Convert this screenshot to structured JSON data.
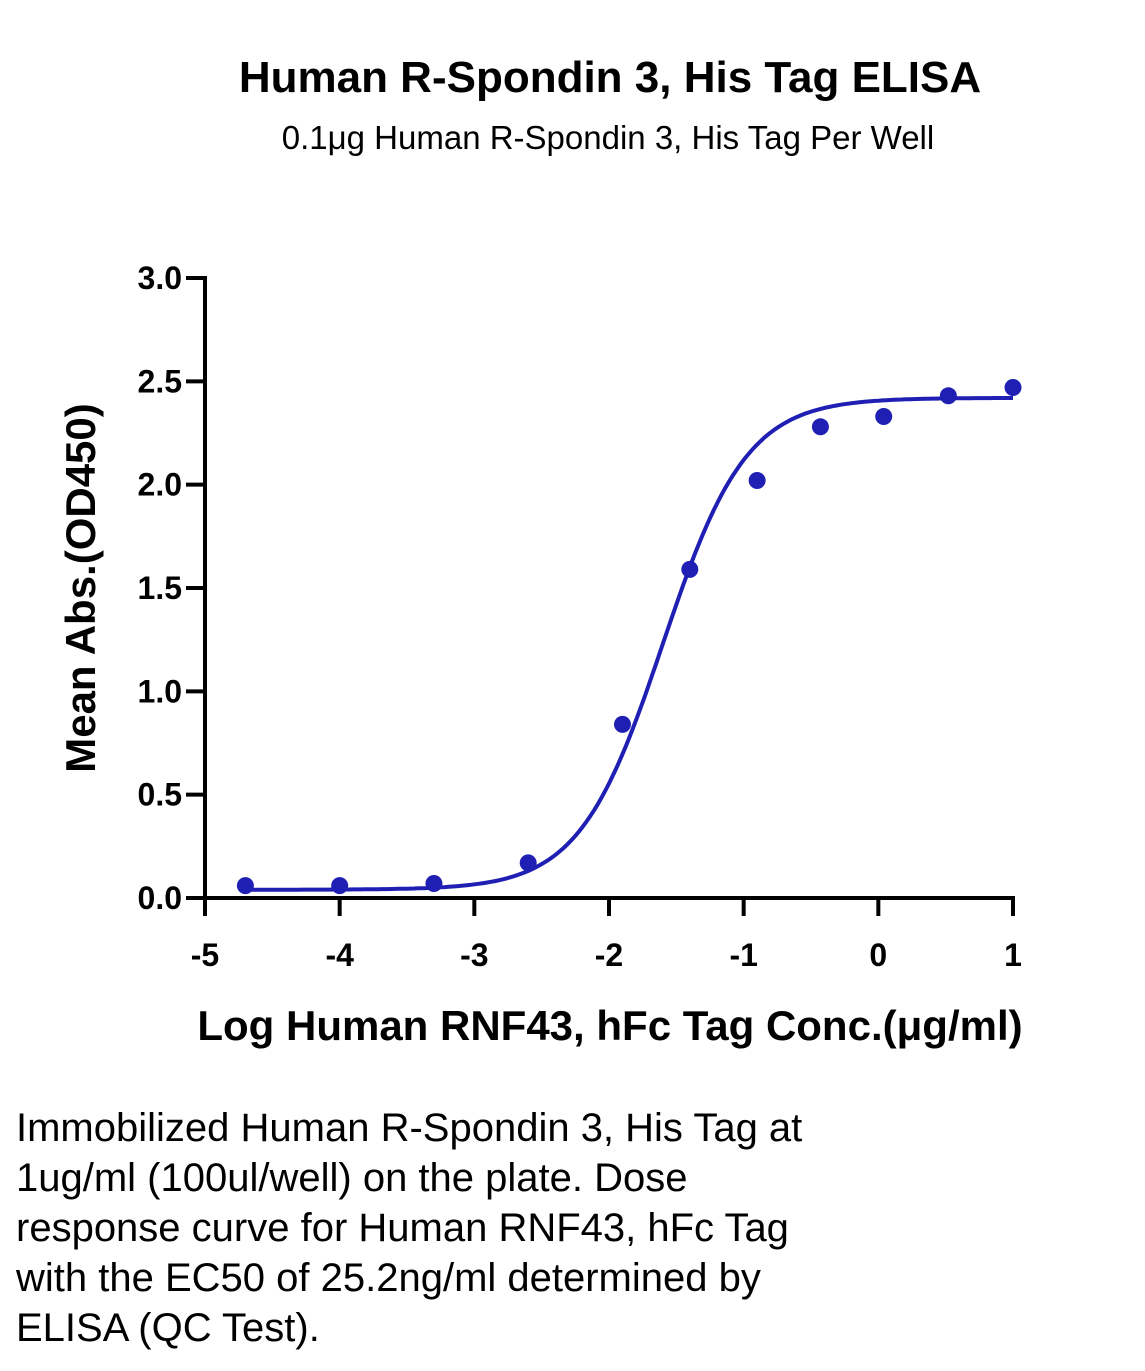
{
  "chart_data": {
    "type": "scatter",
    "title": "Human R-Spondin 3, His Tag ELISA",
    "subtitle": "0.1μg Human R-Spondin 3, His Tag Per Well",
    "xlabel": "Log Human RNF43, hFc Tag Conc.(μg/ml)",
    "ylabel": "Mean Abs.(OD450)",
    "xlim": [
      -5,
      1
    ],
    "ylim": [
      0,
      3.0
    ],
    "x_ticks": [
      -5,
      -4,
      -3,
      -2,
      -1,
      0,
      1
    ],
    "x_tick_labels": [
      "-5",
      "-4",
      "-3",
      "-2",
      "-1",
      "0",
      "1"
    ],
    "y_ticks": [
      0,
      0.5,
      1.0,
      1.5,
      2.0,
      2.5,
      3.0
    ],
    "y_tick_labels": [
      "0.0",
      "0.5",
      "1.0",
      "1.5",
      "2.0",
      "2.5",
      "3.0"
    ],
    "grid": false,
    "color": "#1f1fb4",
    "points": [
      {
        "x": -4.7,
        "y": 0.06
      },
      {
        "x": -4.0,
        "y": 0.06
      },
      {
        "x": -3.3,
        "y": 0.07
      },
      {
        "x": -2.6,
        "y": 0.17
      },
      {
        "x": -1.9,
        "y": 0.84
      },
      {
        "x": -1.4,
        "y": 1.59
      },
      {
        "x": -0.9,
        "y": 2.02
      },
      {
        "x": -0.43,
        "y": 2.28
      },
      {
        "x": 0.04,
        "y": 2.33
      },
      {
        "x": 0.52,
        "y": 2.43
      },
      {
        "x": 1.0,
        "y": 2.47
      }
    ],
    "fit_curve": {
      "model": "4PL",
      "bottom": 0.04,
      "top": 2.42,
      "log_ec50": -1.6,
      "hill_slope": 1.4,
      "x_range": [
        -4.7,
        1.0
      ]
    }
  },
  "caption": "Immobilized Human R-Spondin 3, His Tag at\n1ug/ml (100ul/well) on the plate. Dose\nresponse curve for Human RNF43, hFc Tag\nwith the EC50 of 25.2ng/ml determined by\nELISA (QC Test)."
}
